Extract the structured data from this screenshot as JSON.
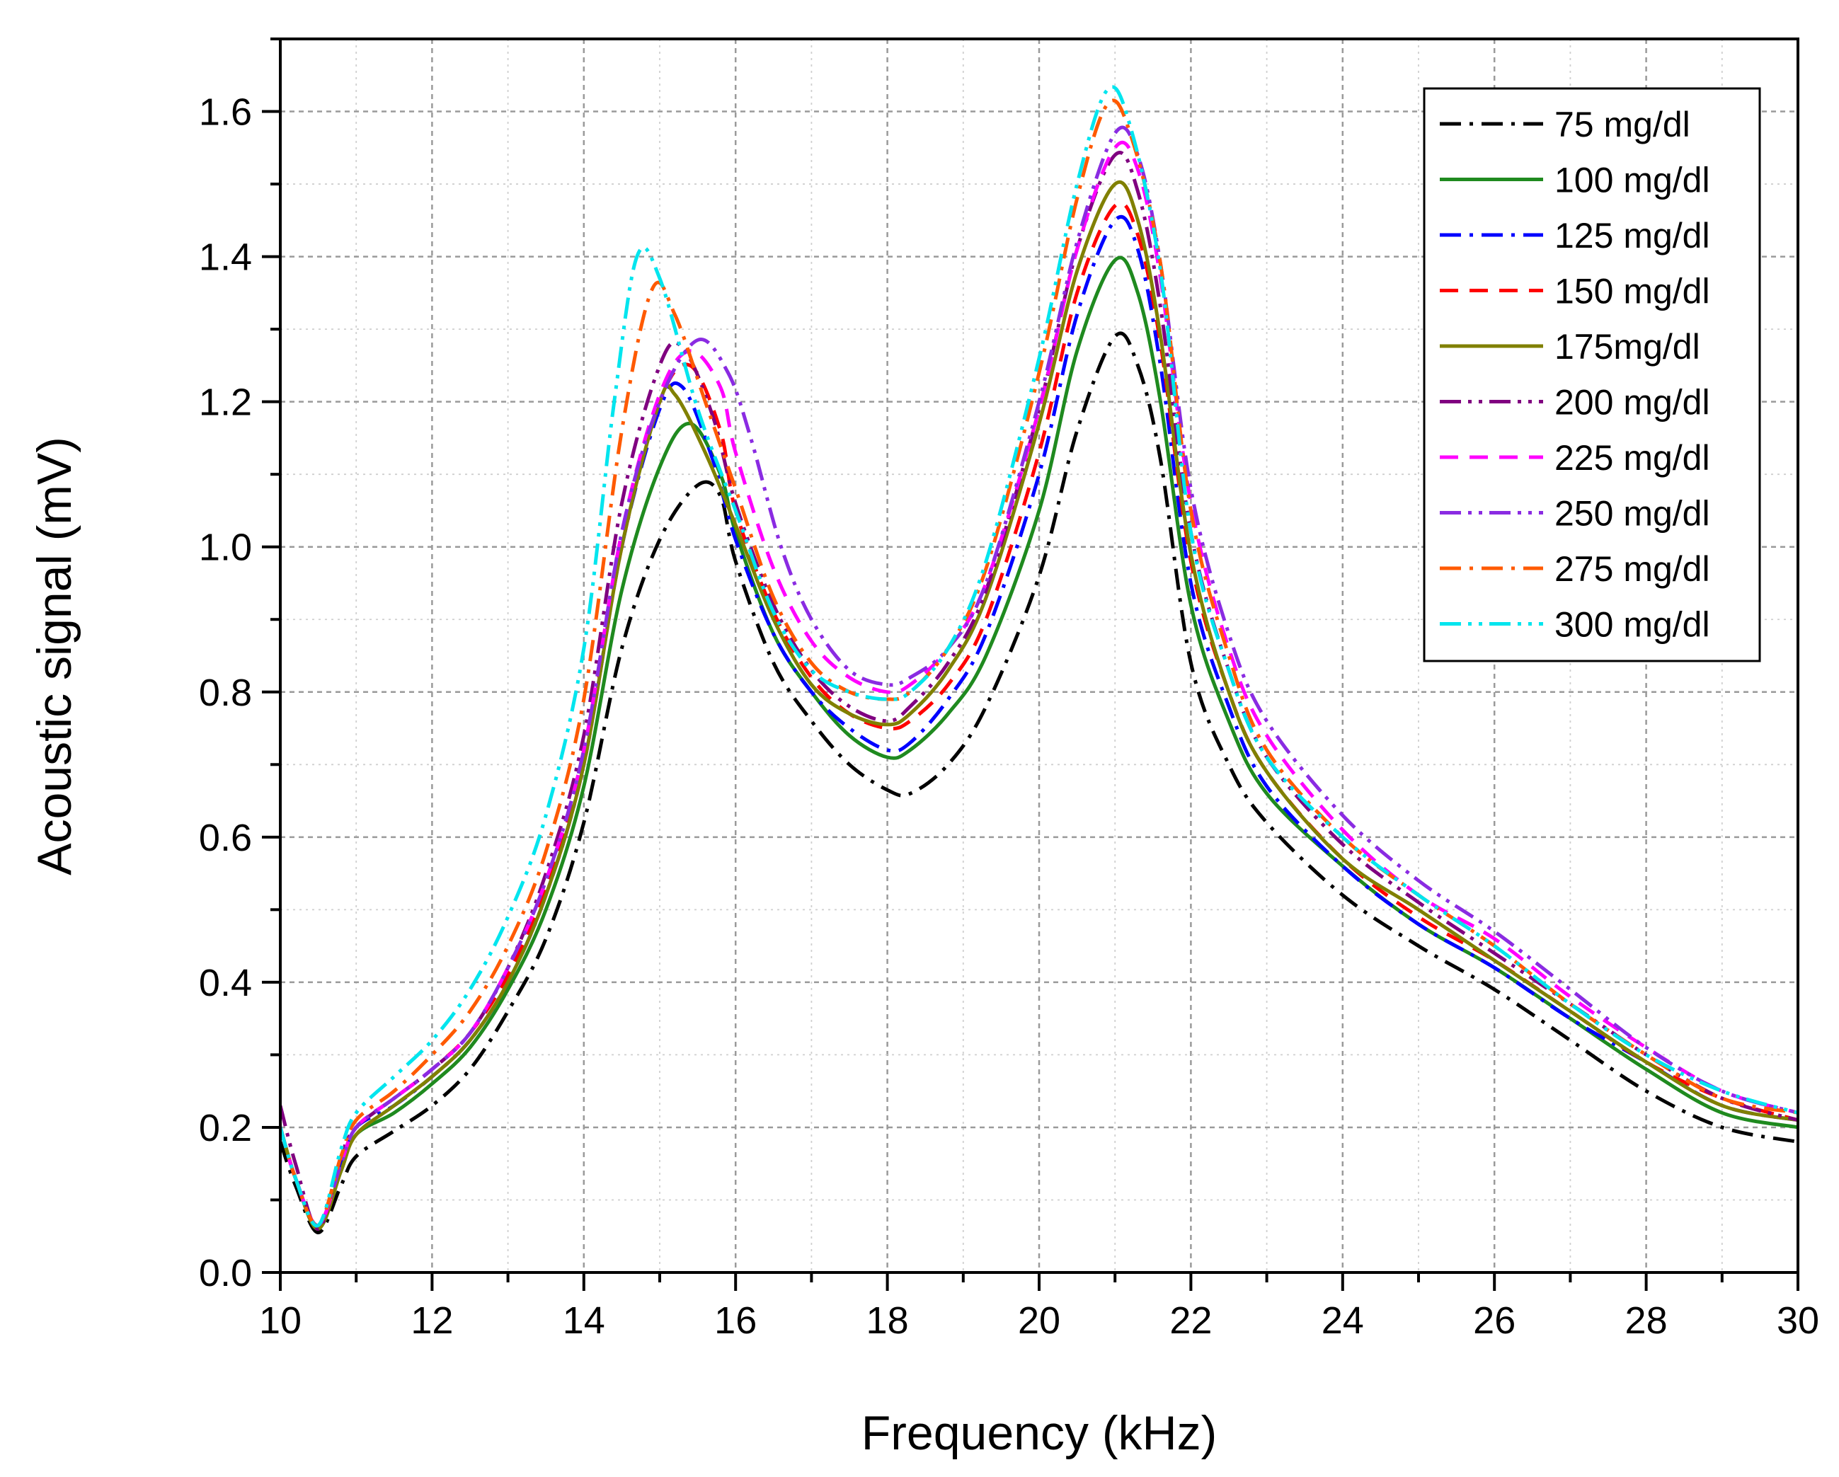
{
  "chart_data": {
    "type": "line",
    "title": "",
    "xlabel": "Frequency (kHz)",
    "ylabel": "Acoustic signal (mV)",
    "xlim": [
      10,
      30
    ],
    "ylim": [
      0.0,
      1.7
    ],
    "xticks": [
      10,
      12,
      14,
      16,
      18,
      20,
      22,
      24,
      26,
      28,
      30
    ],
    "xtick_labels": [
      "10",
      "12",
      "14",
      "16",
      "18",
      "20",
      "22",
      "24",
      "26",
      "28",
      "30"
    ],
    "yticks": [
      0.0,
      0.2,
      0.4,
      0.6,
      0.8,
      1.0,
      1.2,
      1.4,
      1.6
    ],
    "ytick_labels": [
      "0.0",
      "0.2",
      "0.4",
      "0.6",
      "0.8",
      "1.0",
      "1.2",
      "1.4",
      "1.6"
    ],
    "grid": true,
    "legend_position": "top-right",
    "series": [
      {
        "name": "75 mg/dl",
        "color": "#000000",
        "dash": "dashdot",
        "x": [
          10,
          10.2,
          10.5,
          10.8,
          11,
          11.5,
          12,
          12.5,
          13,
          13.5,
          14,
          14.5,
          15,
          15.5,
          15.8,
          16,
          16.5,
          17,
          17.5,
          18,
          18.3,
          18.8,
          19.3,
          20,
          20.5,
          21,
          21.3,
          21.6,
          22,
          22.5,
          23,
          24,
          25,
          26,
          27,
          28,
          29,
          30
        ],
        "y": [
          0.18,
          0.12,
          0.055,
          0.12,
          0.16,
          0.195,
          0.23,
          0.28,
          0.36,
          0.46,
          0.62,
          0.86,
          1.01,
          1.085,
          1.07,
          0.98,
          0.84,
          0.76,
          0.7,
          0.665,
          0.66,
          0.7,
          0.78,
          0.96,
          1.16,
          1.29,
          1.25,
          1.12,
          0.84,
          0.7,
          0.62,
          0.52,
          0.45,
          0.39,
          0.32,
          0.25,
          0.2,
          0.18
        ]
      },
      {
        "name": "100 mg/dl",
        "color": "#1f8a1f",
        "dash": "solid",
        "x": [
          10,
          10.2,
          10.5,
          10.8,
          11,
          11.5,
          12,
          12.5,
          13,
          13.5,
          14,
          14.5,
          15,
          15.4,
          15.8,
          16,
          16.5,
          17,
          17.5,
          18,
          18.3,
          18.8,
          19.3,
          20,
          20.5,
          21,
          21.3,
          21.6,
          22,
          22.5,
          23,
          24,
          25,
          26,
          27,
          28,
          29,
          30
        ],
        "y": [
          0.2,
          0.13,
          0.06,
          0.14,
          0.19,
          0.22,
          0.26,
          0.31,
          0.39,
          0.5,
          0.67,
          0.94,
          1.11,
          1.17,
          1.1,
          1.02,
          0.88,
          0.8,
          0.74,
          0.71,
          0.72,
          0.77,
          0.85,
          1.05,
          1.27,
          1.395,
          1.35,
          1.2,
          0.92,
          0.76,
          0.66,
          0.56,
          0.48,
          0.42,
          0.35,
          0.28,
          0.22,
          0.2
        ]
      },
      {
        "name": "125 mg/dl",
        "color": "#0000ff",
        "dash": "dashdot",
        "x": [
          10,
          10.2,
          10.5,
          10.8,
          11,
          11.5,
          12,
          12.5,
          13,
          13.5,
          14,
          14.5,
          15,
          15.3,
          15.7,
          16,
          16.5,
          17,
          17.5,
          18,
          18.3,
          18.8,
          19.3,
          20,
          20.5,
          21,
          21.3,
          21.6,
          22,
          22.5,
          23,
          24,
          25,
          26,
          27,
          28,
          29,
          30
        ],
        "y": [
          0.2,
          0.13,
          0.065,
          0.15,
          0.2,
          0.23,
          0.27,
          0.32,
          0.4,
          0.52,
          0.7,
          1.0,
          1.19,
          1.22,
          1.12,
          1.01,
          0.88,
          0.8,
          0.75,
          0.72,
          0.73,
          0.79,
          0.88,
          1.1,
          1.32,
          1.45,
          1.41,
          1.25,
          0.95,
          0.78,
          0.67,
          0.56,
          0.48,
          0.42,
          0.35,
          0.29,
          0.23,
          0.21
        ]
      },
      {
        "name": "150 mg/dl",
        "color": "#ff0000",
        "dash": "dashed",
        "x": [
          10,
          10.2,
          10.5,
          10.8,
          11,
          11.5,
          12,
          12.5,
          13,
          13.5,
          14,
          14.5,
          15,
          15.4,
          15.8,
          16,
          16.5,
          17,
          17.5,
          18,
          18.3,
          18.8,
          19.3,
          20,
          20.5,
          21,
          21.3,
          21.6,
          22,
          22.5,
          23,
          24,
          25,
          26,
          27,
          28,
          29,
          30
        ],
        "y": [
          0.2,
          0.13,
          0.065,
          0.15,
          0.2,
          0.24,
          0.28,
          0.33,
          0.41,
          0.53,
          0.71,
          1.0,
          1.2,
          1.25,
          1.16,
          1.05,
          0.91,
          0.82,
          0.77,
          0.75,
          0.76,
          0.81,
          0.9,
          1.13,
          1.35,
          1.47,
          1.43,
          1.28,
          0.98,
          0.8,
          0.69,
          0.57,
          0.49,
          0.43,
          0.36,
          0.29,
          0.24,
          0.21
        ]
      },
      {
        "name": "175mg/dl",
        "color": "#808000",
        "dash": "solid",
        "x": [
          10,
          10.2,
          10.5,
          10.8,
          11,
          11.5,
          12,
          12.5,
          13,
          13.5,
          14,
          14.5,
          15,
          15.2,
          15.6,
          16,
          16.5,
          17,
          17.5,
          18,
          18.3,
          18.8,
          19.3,
          20,
          20.5,
          21,
          21.3,
          21.6,
          22,
          22.5,
          23,
          24,
          25,
          26,
          27,
          28,
          29,
          30
        ],
        "y": [
          0.2,
          0.13,
          0.06,
          0.14,
          0.19,
          0.23,
          0.27,
          0.32,
          0.4,
          0.52,
          0.7,
          1.0,
          1.2,
          1.21,
          1.13,
          1.03,
          0.9,
          0.81,
          0.77,
          0.755,
          0.77,
          0.83,
          0.93,
          1.17,
          1.38,
          1.5,
          1.45,
          1.29,
          0.99,
          0.8,
          0.69,
          0.57,
          0.5,
          0.43,
          0.36,
          0.29,
          0.23,
          0.21
        ]
      },
      {
        "name": "200 mg/dl",
        "color": "#800080",
        "dash": "dashdotdot",
        "x": [
          10,
          10.2,
          10.5,
          10.8,
          11,
          11.5,
          12,
          12.5,
          13,
          13.5,
          14,
          14.5,
          15,
          15.3,
          15.7,
          16,
          16.5,
          17,
          17.5,
          18,
          18.3,
          18.8,
          19.3,
          20,
          20.5,
          21,
          21.3,
          21.6,
          22,
          22.5,
          23,
          24,
          25,
          26,
          27,
          28,
          29,
          30
        ],
        "y": [
          0.23,
          0.15,
          0.06,
          0.16,
          0.2,
          0.24,
          0.28,
          0.33,
          0.42,
          0.55,
          0.74,
          1.06,
          1.25,
          1.275,
          1.18,
          1.06,
          0.92,
          0.83,
          0.78,
          0.76,
          0.78,
          0.84,
          0.94,
          1.19,
          1.41,
          1.54,
          1.49,
          1.33,
          1.02,
          0.83,
          0.71,
          0.59,
          0.51,
          0.44,
          0.37,
          0.3,
          0.24,
          0.21
        ]
      },
      {
        "name": "225 mg/dl",
        "color": "#ff00ff",
        "dash": "dashed",
        "x": [
          10,
          10.2,
          10.5,
          10.8,
          11,
          11.5,
          12,
          12.5,
          13,
          13.5,
          14,
          14.5,
          15,
          15.4,
          15.8,
          16,
          16.5,
          17,
          17.5,
          18,
          18.3,
          18.8,
          19.3,
          20,
          20.5,
          21,
          21.3,
          21.6,
          22,
          22.5,
          23,
          24,
          25,
          26,
          27,
          28,
          29,
          30
        ],
        "y": [
          0.2,
          0.13,
          0.065,
          0.15,
          0.2,
          0.24,
          0.28,
          0.33,
          0.42,
          0.54,
          0.72,
          1.02,
          1.21,
          1.27,
          1.22,
          1.13,
          0.97,
          0.87,
          0.82,
          0.8,
          0.81,
          0.86,
          0.95,
          1.19,
          1.41,
          1.55,
          1.52,
          1.37,
          1.06,
          0.86,
          0.74,
          0.61,
          0.52,
          0.46,
          0.38,
          0.31,
          0.25,
          0.22
        ]
      },
      {
        "name": "250 mg/dl",
        "color": "#8a2be2",
        "dash": "dashdotdot",
        "x": [
          10,
          10.2,
          10.5,
          10.8,
          11,
          11.5,
          12,
          12.5,
          13,
          13.5,
          14,
          14.5,
          15,
          15.5,
          15.9,
          16.2,
          16.6,
          17,
          17.5,
          18,
          18.3,
          18.8,
          19.3,
          20,
          20.5,
          21,
          21.3,
          21.6,
          22,
          22.5,
          23,
          24,
          25,
          26,
          27,
          28,
          29,
          30
        ],
        "y": [
          0.2,
          0.13,
          0.065,
          0.15,
          0.2,
          0.24,
          0.28,
          0.33,
          0.42,
          0.54,
          0.72,
          1.02,
          1.2,
          1.285,
          1.24,
          1.15,
          1.0,
          0.9,
          0.83,
          0.81,
          0.82,
          0.86,
          0.95,
          1.2,
          1.42,
          1.57,
          1.54,
          1.39,
          1.08,
          0.88,
          0.76,
          0.63,
          0.54,
          0.47,
          0.39,
          0.31,
          0.25,
          0.22
        ]
      },
      {
        "name": "275 mg/dl",
        "color": "#ff5a00",
        "dash": "dashdot",
        "x": [
          10,
          10.2,
          10.5,
          10.8,
          11,
          11.5,
          12,
          12.5,
          13,
          13.5,
          14,
          14.5,
          14.9,
          15.2,
          15.6,
          16,
          16.5,
          17,
          17.5,
          18,
          18.3,
          18.8,
          19.3,
          20,
          20.5,
          20.9,
          21.2,
          21.6,
          22,
          22.5,
          23,
          24,
          25,
          26,
          27,
          28,
          29,
          30
        ],
        "y": [
          0.2,
          0.13,
          0.065,
          0.16,
          0.21,
          0.25,
          0.3,
          0.36,
          0.45,
          0.58,
          0.79,
          1.16,
          1.355,
          1.32,
          1.2,
          1.08,
          0.93,
          0.84,
          0.8,
          0.79,
          0.8,
          0.86,
          0.97,
          1.24,
          1.48,
          1.61,
          1.57,
          1.39,
          1.05,
          0.85,
          0.72,
          0.6,
          0.52,
          0.45,
          0.37,
          0.3,
          0.24,
          0.22
        ]
      },
      {
        "name": "300 mg/dl",
        "color": "#00e5ee",
        "dash": "dashdotdot",
        "x": [
          10,
          10.2,
          10.5,
          10.8,
          11,
          11.5,
          12,
          12.5,
          13,
          13.5,
          14,
          14.4,
          14.7,
          15,
          15.5,
          16,
          16.5,
          17,
          17.5,
          18,
          18.3,
          18.8,
          19.3,
          20,
          20.5,
          20.9,
          21.2,
          21.6,
          22,
          22.5,
          23,
          24,
          25,
          26,
          27,
          28,
          29,
          30
        ],
        "y": [
          0.2,
          0.13,
          0.065,
          0.17,
          0.22,
          0.27,
          0.32,
          0.39,
          0.49,
          0.63,
          0.86,
          1.2,
          1.4,
          1.37,
          1.19,
          1.05,
          0.91,
          0.83,
          0.8,
          0.79,
          0.8,
          0.86,
          0.98,
          1.26,
          1.5,
          1.63,
          1.58,
          1.38,
          1.02,
          0.83,
          0.71,
          0.6,
          0.52,
          0.45,
          0.37,
          0.3,
          0.25,
          0.22
        ]
      }
    ]
  }
}
